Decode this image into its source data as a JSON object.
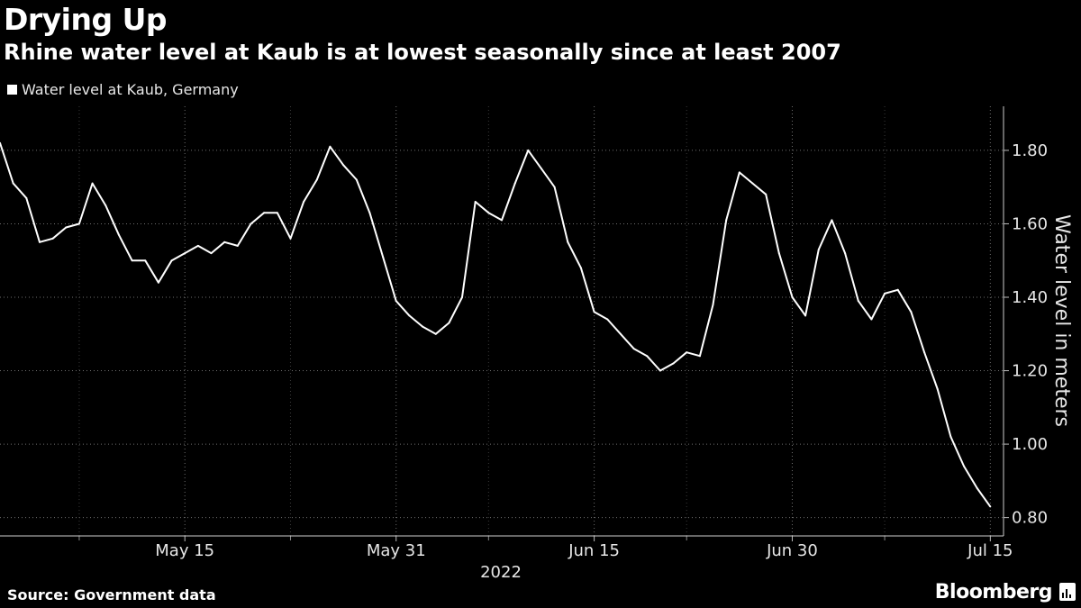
{
  "title": "Drying Up",
  "subtitle": "Rhine water level at Kaub is at lowest seasonally since at least 2007",
  "legend": "Water level at Kaub, Germany",
  "source": "Source: Government data",
  "brand": "Bloomberg",
  "colors": {
    "background": "#000000",
    "line": "#ffffff",
    "grid": "#6e6e6e"
  },
  "chart_data": {
    "type": "line",
    "title": "Drying Up",
    "subtitle": "Rhine water level at Kaub is at lowest seasonally since at least 2007",
    "ylabel": "Water level in meters",
    "xlabel": "2022",
    "ylim": [
      0.75,
      1.92
    ],
    "yticks": [
      0.8,
      1.0,
      1.2,
      1.4,
      1.6,
      1.8
    ],
    "ytick_labels": [
      "0.80",
      "1.00",
      "1.20",
      "1.40",
      "1.60",
      "1.80"
    ],
    "xlim": [
      "2022-05-01",
      "2022-07-16"
    ],
    "xticks": [
      "2022-05-15",
      "2022-05-31",
      "2022-06-15",
      "2022-06-30",
      "2022-07-15"
    ],
    "xtick_labels": [
      "May 15",
      "May 31",
      "Jun 15",
      "Jun 30",
      "Jul 15"
    ],
    "grid": true,
    "legend_position": "top-left",
    "series": [
      {
        "name": "Water level at Kaub, Germany",
        "x": [
          "2022-05-01",
          "2022-05-02",
          "2022-05-03",
          "2022-05-04",
          "2022-05-05",
          "2022-05-06",
          "2022-05-07",
          "2022-05-08",
          "2022-05-09",
          "2022-05-10",
          "2022-05-11",
          "2022-05-12",
          "2022-05-13",
          "2022-05-14",
          "2022-05-15",
          "2022-05-16",
          "2022-05-17",
          "2022-05-18",
          "2022-05-19",
          "2022-05-20",
          "2022-05-21",
          "2022-05-22",
          "2022-05-23",
          "2022-05-24",
          "2022-05-25",
          "2022-05-26",
          "2022-05-27",
          "2022-05-28",
          "2022-05-29",
          "2022-05-30",
          "2022-05-31",
          "2022-06-01",
          "2022-06-02",
          "2022-06-03",
          "2022-06-04",
          "2022-06-05",
          "2022-06-06",
          "2022-06-07",
          "2022-06-08",
          "2022-06-09",
          "2022-06-10",
          "2022-06-11",
          "2022-06-12",
          "2022-06-13",
          "2022-06-14",
          "2022-06-15",
          "2022-06-16",
          "2022-06-17",
          "2022-06-18",
          "2022-06-19",
          "2022-06-20",
          "2022-06-21",
          "2022-06-22",
          "2022-06-23",
          "2022-06-24",
          "2022-06-25",
          "2022-06-26",
          "2022-06-27",
          "2022-06-28",
          "2022-06-29",
          "2022-06-30",
          "2022-07-01",
          "2022-07-02",
          "2022-07-03",
          "2022-07-04",
          "2022-07-05",
          "2022-07-06",
          "2022-07-07",
          "2022-07-08",
          "2022-07-09",
          "2022-07-10",
          "2022-07-11",
          "2022-07-12",
          "2022-07-13",
          "2022-07-14",
          "2022-07-15"
        ],
        "values": [
          1.82,
          1.71,
          1.67,
          1.55,
          1.56,
          1.59,
          1.6,
          1.71,
          1.65,
          1.57,
          1.5,
          1.5,
          1.44,
          1.5,
          1.52,
          1.54,
          1.52,
          1.55,
          1.54,
          1.6,
          1.63,
          1.63,
          1.56,
          1.66,
          1.72,
          1.81,
          1.76,
          1.72,
          1.63,
          1.51,
          1.39,
          1.35,
          1.32,
          1.3,
          1.33,
          1.4,
          1.66,
          1.63,
          1.61,
          1.71,
          1.8,
          1.75,
          1.7,
          1.55,
          1.48,
          1.36,
          1.34,
          1.3,
          1.26,
          1.24,
          1.2,
          1.22,
          1.25,
          1.24,
          1.38,
          1.61,
          1.74,
          1.71,
          1.68,
          1.52,
          1.4,
          1.35,
          1.53,
          1.61,
          1.52,
          1.39,
          1.34,
          1.41,
          1.42,
          1.36,
          1.25,
          1.15,
          1.02,
          0.94,
          0.88,
          0.83
        ]
      }
    ]
  }
}
